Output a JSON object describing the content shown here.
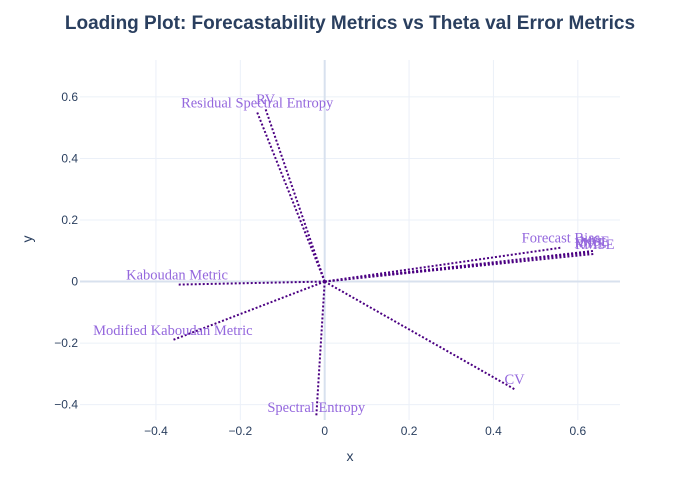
{
  "chart_data": {
    "type": "scatter",
    "title": "Loading Plot: Forecastability Metrics vs Theta val Error Metrics",
    "xlabel": "x",
    "ylabel": "y",
    "xlim": [
      -0.58,
      0.7
    ],
    "ylim": [
      -0.45,
      0.72
    ],
    "xticks": [
      -0.4,
      -0.2,
      0,
      0.2,
      0.4,
      0.6
    ],
    "yticks": [
      -0.4,
      -0.2,
      0,
      0.2,
      0.4,
      0.6
    ],
    "grid": true,
    "legend": "none",
    "series": [
      {
        "label": "Residual Spectral Entropy",
        "x": -0.16,
        "y": 0.55
      },
      {
        "label": "RV",
        "x": -0.14,
        "y": 0.56
      },
      {
        "label": "Kaboudan Metric",
        "x": -0.35,
        "y": -0.01
      },
      {
        "label": "Modified Kaboudan Metric",
        "x": -0.36,
        "y": -0.19
      },
      {
        "label": "Spectral Entropy",
        "x": -0.02,
        "y": -0.44
      },
      {
        "label": "CV",
        "x": 0.45,
        "y": -0.35
      },
      {
        "label": "Forecast Bias",
        "x": 0.56,
        "y": 0.11
      },
      {
        "label": "MAE",
        "x": 0.63,
        "y": 0.095
      },
      {
        "label": "MSE",
        "x": 0.64,
        "y": 0.1
      },
      {
        "label": "RMSE",
        "x": 0.64,
        "y": 0.09
      }
    ],
    "colors": {
      "vector": "#4b0082",
      "label": "#9467dd",
      "title": "#2a3f5f",
      "axis_text": "#2a3f5f",
      "grid": "#ebf0f8",
      "zeroline": "#d8e1ee"
    }
  }
}
